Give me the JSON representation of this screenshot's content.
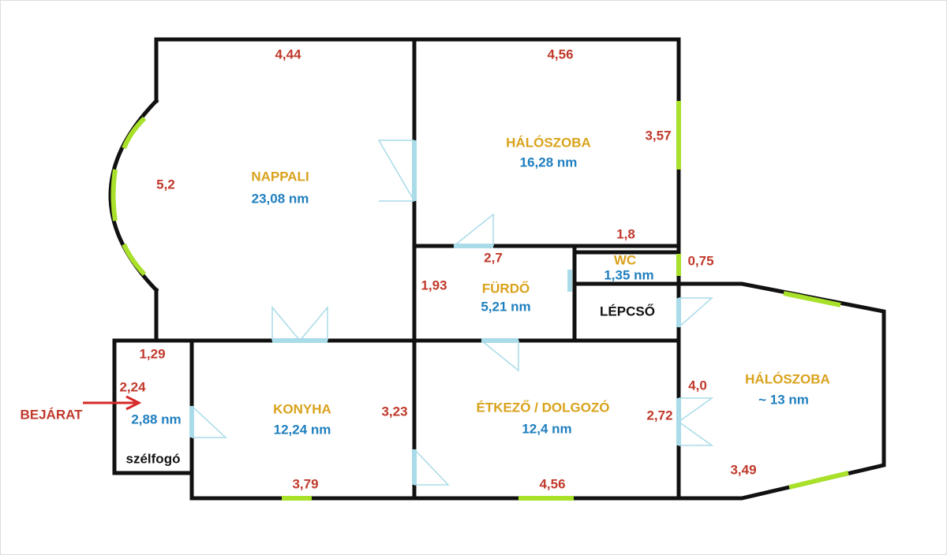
{
  "rooms": [
    {
      "name": "NAPPALI",
      "area": "23,08 nm"
    },
    {
      "name": "HÁLÓSZOBA",
      "area": "16,28 nm"
    },
    {
      "name": "FÜRDŐ",
      "area": "5,21 nm"
    },
    {
      "name": "WC",
      "area": "1,35 nm"
    },
    {
      "name": "KONYHA",
      "area": "12,24 nm"
    },
    {
      "name": "ÉTKEZŐ / DOLGOZÓ",
      "area": "12,4 nm"
    },
    {
      "name": "HÁLÓSZOBA",
      "area": "~ 13 nm"
    },
    {
      "name": "szélfogó",
      "area": "2,88 nm"
    },
    {
      "name": "LÉPCSŐ"
    }
  ],
  "dimensions": [
    "4,44",
    "4,56",
    "5,2",
    "3,57",
    "1,8",
    "2,7",
    "0,75",
    "1,93",
    "1,29",
    "2,24",
    "3,23",
    "4,0",
    "2,72",
    "3,49",
    "3,79",
    "4,56"
  ],
  "entrance": "BEJÁRAT"
}
